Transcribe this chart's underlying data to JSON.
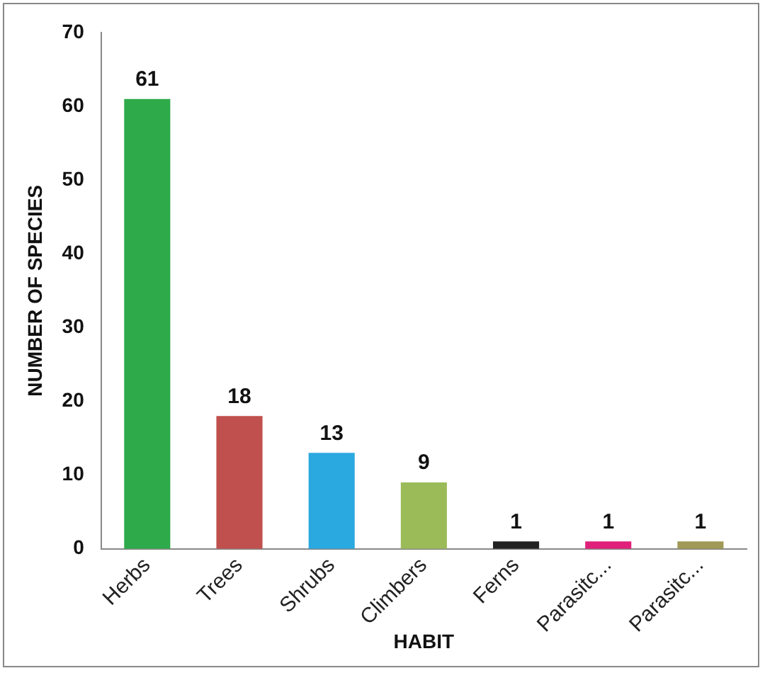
{
  "chart_data": {
    "type": "bar",
    "xlabel": "HABIT",
    "ylabel": "NUMBER OF SPECIES",
    "categories": [
      "Herbs",
      "Trees",
      "Shrubs",
      "Climbers",
      "Ferns",
      "Parasitc...",
      "Parasitc..."
    ],
    "values": [
      61,
      18,
      13,
      9,
      1,
      1,
      1
    ],
    "colors": [
      "#2eaa4a",
      "#c0504d",
      "#2aa8e0",
      "#9bbb59",
      "#222222",
      "#e0207a",
      "#a09a58"
    ],
    "ylim": [
      0,
      70
    ],
    "yticks": [
      0,
      10,
      20,
      30,
      40,
      50,
      60,
      70
    ],
    "grid": false,
    "legend": false,
    "data_labels": true
  }
}
